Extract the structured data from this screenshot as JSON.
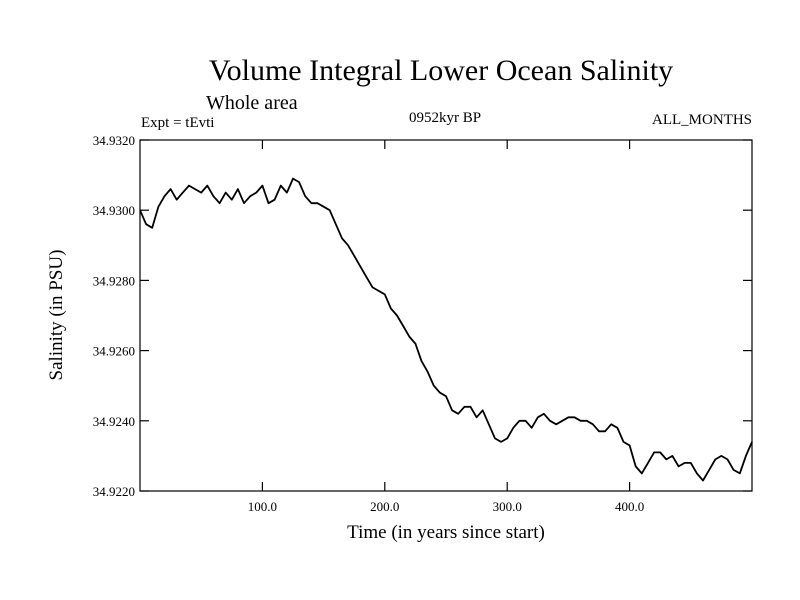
{
  "chart_data": {
    "type": "line",
    "title": "Volume Integral Lower Ocean Salinity",
    "subtitle": "Whole area",
    "experiment": "Expt = tEvti",
    "period": "0952kyr BP",
    "months": "ALL_MONTHS",
    "xlabel": "Time (in years since start)",
    "ylabel": "Salinity (in PSU)",
    "xlim": [
      0,
      500
    ],
    "ylim": [
      34.922,
      34.932
    ],
    "x_ticks": [
      100,
      200,
      300,
      400
    ],
    "x_tick_labels": [
      "100.0",
      "200.0",
      "300.0",
      "400.0"
    ],
    "y_ticks": [
      34.922,
      34.924,
      34.926,
      34.928,
      34.93,
      34.932
    ],
    "y_tick_labels": [
      "34.9220",
      "34.9240",
      "34.9260",
      "34.9280",
      "34.9300",
      "34.9320"
    ],
    "series": [
      {
        "name": "salinity",
        "x": [
          0,
          5,
          10,
          15,
          20,
          25,
          30,
          35,
          40,
          45,
          50,
          55,
          60,
          65,
          70,
          75,
          80,
          85,
          90,
          95,
          100,
          105,
          110,
          115,
          120,
          125,
          130,
          135,
          140,
          145,
          150,
          155,
          160,
          165,
          170,
          175,
          180,
          185,
          190,
          195,
          200,
          205,
          210,
          215,
          220,
          225,
          230,
          235,
          240,
          245,
          250,
          255,
          260,
          265,
          270,
          275,
          280,
          285,
          290,
          295,
          300,
          305,
          310,
          315,
          320,
          325,
          330,
          335,
          340,
          345,
          350,
          355,
          360,
          365,
          370,
          375,
          380,
          385,
          390,
          395,
          400,
          405,
          410,
          415,
          420,
          425,
          430,
          435,
          440,
          445,
          450,
          455,
          460,
          465,
          470,
          475,
          480,
          485,
          490,
          495,
          500
        ],
        "values": [
          34.93,
          34.9296,
          34.9295,
          34.9301,
          34.9304,
          34.9306,
          34.9303,
          34.9305,
          34.9307,
          34.9306,
          34.9305,
          34.9307,
          34.9304,
          34.9302,
          34.9305,
          34.9303,
          34.9306,
          34.9302,
          34.9304,
          34.9305,
          34.9307,
          34.9302,
          34.9303,
          34.9307,
          34.9305,
          34.9309,
          34.9308,
          34.9304,
          34.9302,
          34.9302,
          34.9301,
          34.93,
          34.9296,
          34.9292,
          34.929,
          34.9287,
          34.9284,
          34.9281,
          34.9278,
          34.9277,
          34.9276,
          34.9272,
          34.927,
          34.9267,
          34.9264,
          34.9262,
          34.9257,
          34.9254,
          34.925,
          34.9248,
          34.9247,
          34.9243,
          34.9242,
          34.9244,
          34.9244,
          34.9241,
          34.9243,
          34.9239,
          34.9235,
          34.9234,
          34.9235,
          34.9238,
          34.924,
          34.924,
          34.9238,
          34.9241,
          34.9242,
          34.924,
          34.9239,
          34.924,
          34.9241,
          34.9241,
          34.924,
          34.924,
          34.9239,
          34.9237,
          34.9237,
          34.9239,
          34.9238,
          34.9234,
          34.9233,
          34.9227,
          34.9225,
          34.9228,
          34.9231,
          34.9231,
          34.9229,
          34.923,
          34.9227,
          34.9228,
          34.9228,
          34.9225,
          34.9223,
          34.9226,
          34.9229,
          34.923,
          34.9229,
          34.9226,
          34.9225,
          34.923,
          34.9234
        ]
      }
    ]
  }
}
